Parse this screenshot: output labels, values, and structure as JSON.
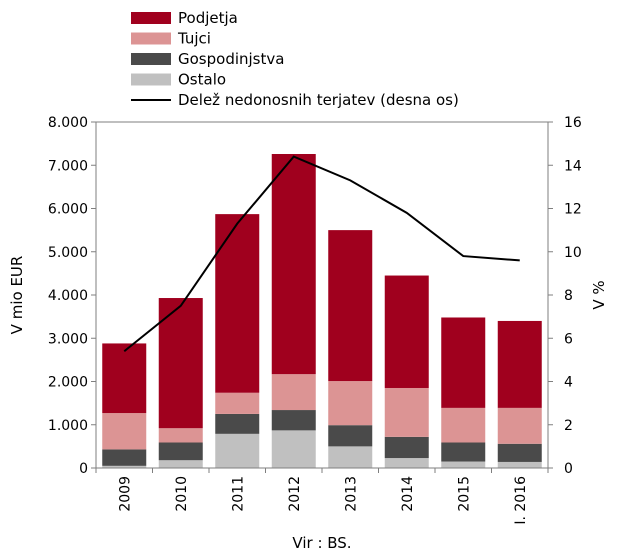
{
  "chart_data": {
    "type": "bar",
    "stacked": true,
    "categories": [
      "2009",
      "2010",
      "2011",
      "2012",
      "2013",
      "2014",
      "2015",
      "I. 2016"
    ],
    "series": [
      {
        "name": "Ostalo",
        "color": "#c0c0c0",
        "values": [
          50,
          180,
          790,
          870,
          500,
          230,
          150,
          140
        ]
      },
      {
        "name": "Gospodinjstva",
        "color": "#4a4a4a",
        "values": [
          380,
          410,
          460,
          470,
          490,
          490,
          440,
          420
        ]
      },
      {
        "name": "Tujci",
        "color": "#dc9494",
        "values": [
          840,
          330,
          490,
          830,
          1020,
          1130,
          800,
          830
        ]
      },
      {
        "name": "Podjetja",
        "color": "#a0001e",
        "values": [
          1610,
          3010,
          4130,
          5090,
          3490,
          2600,
          2090,
          2010
        ]
      }
    ],
    "line": {
      "name": "Delež nedonosnih terjatev (desna os)",
      "color": "#000000",
      "axis": "right",
      "values": [
        5.4,
        7.5,
        11.3,
        14.4,
        13.3,
        11.8,
        9.8,
        9.6
      ]
    },
    "legend_order": [
      "Podjetja",
      "Tujci",
      "Gospodinjstva",
      "Ostalo",
      "Delež nedonosnih terjatev (desna os)"
    ],
    "ylabel": "V mio EUR",
    "ylim": [
      0,
      8000
    ],
    "yticks": [
      "0",
      "1.000",
      "2.000",
      "3.000",
      "4.000",
      "5.000",
      "6.000",
      "7.000",
      "8.000"
    ],
    "y2label": "V %",
    "y2lim": [
      0,
      16
    ],
    "y2ticks": [
      "0",
      "2",
      "4",
      "6",
      "8",
      "10",
      "12",
      "14",
      "16"
    ],
    "grid": false,
    "legend_position": "top"
  },
  "source": "Vir : BS."
}
